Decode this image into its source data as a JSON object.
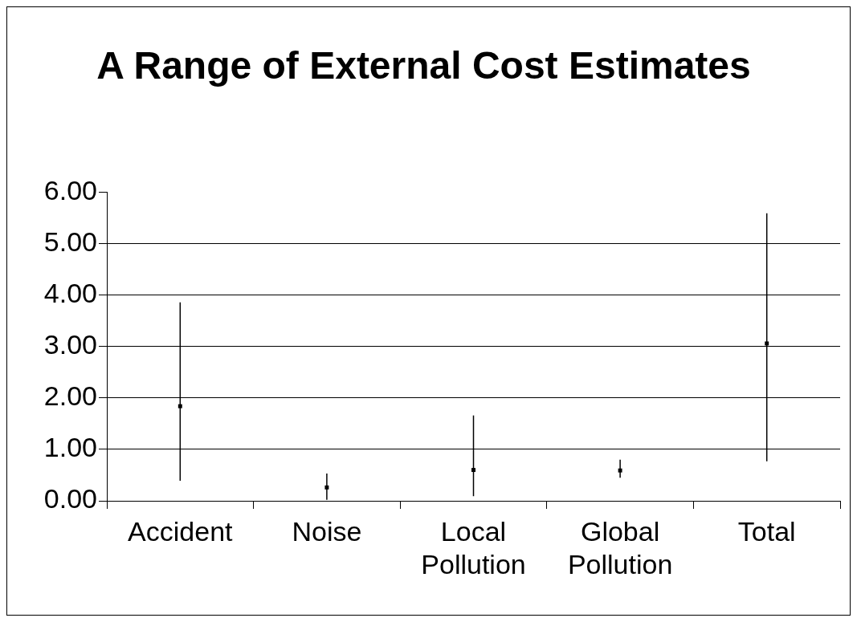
{
  "chart_data": {
    "type": "scatter",
    "title": "A Range of External Cost Estimates",
    "categories": [
      "Accident",
      "Noise",
      "Local Pollution",
      "Global Pollution",
      "Total"
    ],
    "values": [
      1.84,
      0.26,
      0.6,
      0.59,
      3.06
    ],
    "errors": [
      [
        0.39,
        3.86
      ],
      [
        0.02,
        0.53
      ],
      [
        0.09,
        1.66
      ],
      [
        0.45,
        0.8
      ],
      [
        0.77,
        5.59
      ]
    ],
    "color": "#000000",
    "marker": "square",
    "ylim": [
      0,
      6
    ],
    "yticks": [
      {
        "value": 0,
        "label": "0.00"
      },
      {
        "value": 1,
        "label": "1.00"
      },
      {
        "value": 2,
        "label": "2.00"
      },
      {
        "value": 3,
        "label": "3.00"
      },
      {
        "value": 4,
        "label": "4.00"
      },
      {
        "value": 5,
        "label": "5.00"
      },
      {
        "value": 6,
        "label": "6.00"
      }
    ],
    "grid": "y"
  }
}
